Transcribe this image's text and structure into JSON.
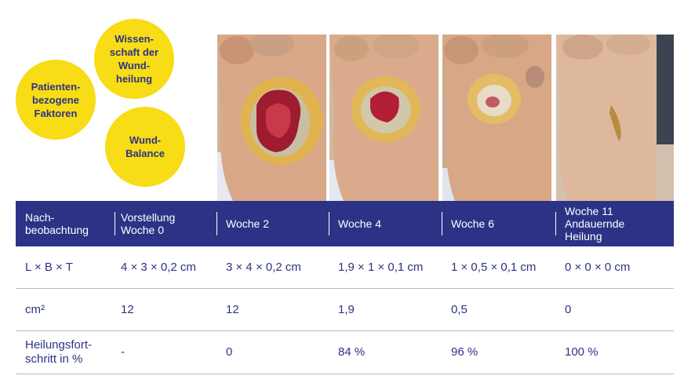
{
  "circles": {
    "wissenschaft": "Wissen-\nschaft der\nWund-\nheilung",
    "patienten": "Patienten-\nbezogene\nFaktoren",
    "balance": "Wund-\nBalance"
  },
  "photos": [
    {
      "name": "photo-presentation",
      "wound": "large"
    },
    {
      "name": "photo-week-2",
      "wound": "medium"
    },
    {
      "name": "photo-week-4",
      "wound": "small"
    },
    {
      "name": "photo-week-11",
      "wound": "healed"
    }
  ],
  "table": {
    "headers": [
      "Nach-\nbeobachtung",
      "Vorstellung\nWoche 0",
      "Woche 2",
      "Woche 4",
      "Woche 6",
      "Woche 11\nAndauernde\nHeilung"
    ],
    "rows": [
      {
        "label": "L × B × T",
        "values": [
          "4 × 3 × 0,2 cm",
          "3 × 4 × 0,2 cm",
          "1,9 × 1 × 0,1 cm",
          "1 × 0,5 × 0,1 cm",
          "0 × 0 × 0 cm"
        ]
      },
      {
        "label": "cm²",
        "values": [
          "12",
          "12",
          "1,9",
          "0,5",
          "0"
        ]
      },
      {
        "label": "Heilungsfort-\nschritt in %",
        "values": [
          "-",
          "0",
          "84 %",
          "96 %",
          "100 %"
        ]
      }
    ]
  },
  "colors": {
    "navy": "#2c3386",
    "yellow": "#f7dc16"
  }
}
